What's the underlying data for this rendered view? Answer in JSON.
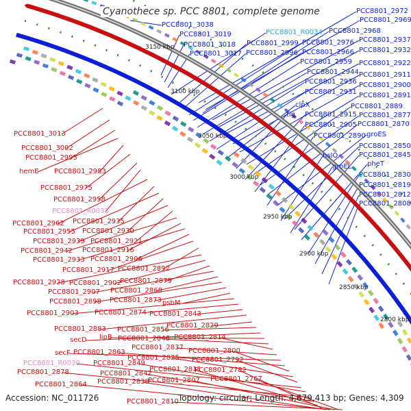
{
  "title": "Cyanothece sp. PCC 8801, complete genome",
  "footer": {
    "accession": "Accession: NC_011726",
    "summary": "Topology: circular; Length: 4,679,413 bp; Genes: 4,309"
  },
  "colors": {
    "forward_gene": "#0a1fd6",
    "reverse_gene": "#c81010",
    "forward_rna": "#2aa7d8",
    "reverse_rna": "#e58ac9",
    "backbone": "#9a9a9a",
    "gc_marks": "#2e8b2e"
  },
  "ticks": [
    "3150 kbp",
    "3100 kbp",
    "3050 kbp",
    "3000 kbp",
    "2950 kbp",
    "2900 kbp",
    "2850 kbp",
    "2800 kbp"
  ],
  "forward_labels": [
    "PCC8801_2972",
    "PCC8801_2969",
    "PCC8801_2968",
    "PCC8801_2937",
    "PCC8801_2932",
    "PCC8801_2922",
    "PCC8801_2911",
    "PCC8801_2900",
    "PCC8801_2891",
    "PCC8801_2889",
    "PCC8801_2877",
    "PCC8801_2870",
    "groES",
    "PCC8801_2850",
    "PCC8801_2845",
    "pheT",
    "PCC8801_2830",
    "PCC8801_2819",
    "PCC8801_2812",
    "PCC8801_2808",
    "PCC8801_3038",
    "PCC8801_3019",
    "PCC8801_3018",
    "PCC8801_3017",
    "PCC8801_R0034",
    "PCC8801_2999",
    "PCC8801_2996",
    "PCC8801_2976",
    "PCC8801_2966",
    "PCC8801_2959",
    "PCC8801_2944",
    "PCC8801_2936",
    "PCC8801_2931",
    "clpX",
    "tig",
    "PCC8801_2915",
    "PCC8801_2905",
    "PCC8801_2890",
    "hslO",
    "groEL"
  ],
  "reverse_labels": [
    "PCC8801_3013",
    "PCC8801_3002",
    "PCC8801_2995",
    "hemE",
    "PCC8801_2983",
    "PCC8801_2975",
    "PCC8801_2958",
    "PCC8801_R0033",
    "PCC8801_2962",
    "PCC8801_2935",
    "PCC8801_2955",
    "PCC8801_2930",
    "PCC8801_2939",
    "PCC8801_2921",
    "PCC8801_2942",
    "PCC8801_2916",
    "PCC8801_2933",
    "PCC8801_2906",
    "PCC8801_2917",
    "PCC8801_2892",
    "PCC8801_2928",
    "PCC8801_2902",
    "PCC8801_2879",
    "PCC8801_2907",
    "PCC8801_2868",
    "PCC8801_2898",
    "PCC8801_2873",
    "psbM",
    "PCC8801_2903",
    "PCC8801_2874",
    "PCC8801_2843",
    "PCC8801_2883",
    "PCC8801_2829",
    "PCC8801_2856",
    "secD",
    "lipB",
    "PCC8801_2846",
    "PCC8801_2814",
    "PCC8801_2837",
    "secF",
    "PCC8801_2863",
    "PCC8801_2800",
    "PCC8801_2825",
    "PCC8801_2792",
    "PCC8801_R0030",
    "PCC8801_2849",
    "PCC8801_2878",
    "PCC8801_2842",
    "PCC8801_2811",
    "PCC8801_2782",
    "PCC8801_2838",
    "PCC8801_2864",
    "PCC8801_2807",
    "PCC8801_2767",
    "PCC8801_2810"
  ]
}
